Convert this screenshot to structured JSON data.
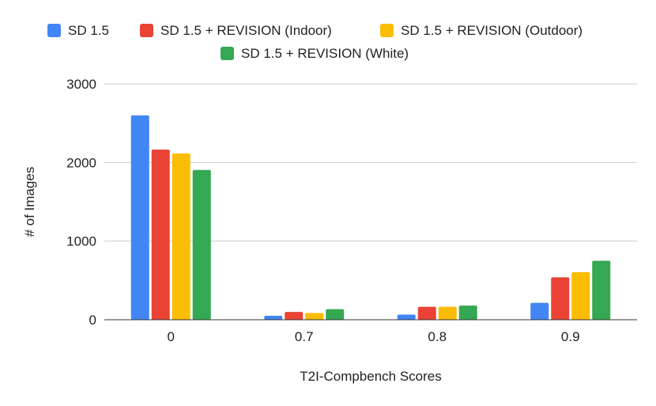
{
  "chart_data": {
    "type": "bar",
    "xlabel": "T2I-Compbench Scores",
    "ylabel": "# of Images",
    "categories": [
      "0",
      "0.7",
      "0.8",
      "0.9"
    ],
    "ylim": [
      0,
      3000
    ],
    "yticks": [
      0,
      1000,
      2000,
      3000
    ],
    "grid": true,
    "legend_position": "top",
    "series": [
      {
        "name": "SD 1.5",
        "color": "#4285F4",
        "values": [
          2600,
          50,
          65,
          215
        ]
      },
      {
        "name": "SD 1.5 + REVISION (Indoor)",
        "color": "#EA4335",
        "values": [
          2165,
          100,
          165,
          540
        ]
      },
      {
        "name": "SD 1.5 + REVISION (Outdoor)",
        "color": "#FBBC04",
        "values": [
          2115,
          85,
          165,
          605
        ]
      },
      {
        "name": "SD 1.5 + REVISION (White)",
        "color": "#34A853",
        "values": [
          1905,
          135,
          180,
          750
        ]
      }
    ]
  }
}
